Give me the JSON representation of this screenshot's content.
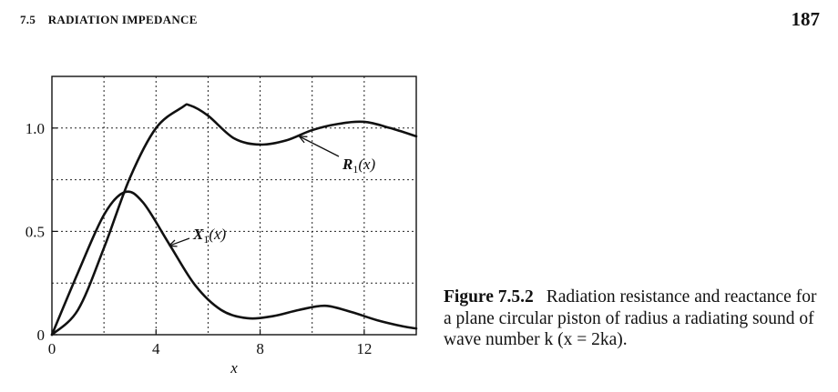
{
  "header": {
    "section_number": "7.5",
    "section_title": "RADIATION IMPEDANCE",
    "page_number": "187"
  },
  "caption": {
    "label": "Figure 7.5.2",
    "text": "Radiation resistance and reactance for a plane circular piston of radius a radiating sound of wave number k (x = 2ka)."
  },
  "chart_data": {
    "type": "line",
    "xlabel": "x",
    "ylabel": "",
    "xlim": [
      0,
      14
    ],
    "ylim": [
      0,
      1.25
    ],
    "x_ticks": [
      0,
      4,
      8,
      12
    ],
    "x_tick_labels": [
      "0",
      "4",
      "8",
      "12"
    ],
    "y_ticks": [
      0,
      0.5,
      1.0
    ],
    "y_tick_labels": [
      "0",
      "0.5",
      "1.0"
    ],
    "grid": true,
    "grid_x": [
      0,
      2,
      4,
      6,
      8,
      10,
      12,
      14
    ],
    "grid_y": [
      0.25,
      0.5,
      0.75,
      1.0
    ],
    "series": [
      {
        "name": "R1(x)",
        "label_base": "R",
        "label_sub": "1",
        "label_arg": "(x)",
        "x": [
          0,
          1,
          2,
          3,
          4,
          5,
          5.3,
          6,
          7,
          8,
          9,
          10,
          11,
          12,
          13,
          14
        ],
        "y": [
          0,
          0.12,
          0.42,
          0.76,
          1.0,
          1.1,
          1.11,
          1.06,
          0.95,
          0.92,
          0.94,
          0.99,
          1.02,
          1.03,
          1.0,
          0.96
        ]
      },
      {
        "name": "X1(x)",
        "label_base": "X",
        "label_sub": "1",
        "label_arg": "(x)",
        "x": [
          0,
          1,
          2,
          2.8,
          3.5,
          4.5,
          5.5,
          6.5,
          7.5,
          8.5,
          9.5,
          10.5,
          11.5,
          12.5,
          13.5,
          14
        ],
        "y": [
          0,
          0.3,
          0.58,
          0.69,
          0.64,
          0.44,
          0.24,
          0.12,
          0.08,
          0.09,
          0.12,
          0.14,
          0.11,
          0.07,
          0.04,
          0.03
        ]
      }
    ],
    "annotations": [
      {
        "series": "R1(x)",
        "text": "R1(x)",
        "at_x": 9.5,
        "at_y": 0.96
      },
      {
        "series": "X1(x)",
        "text": "X1(x)",
        "at_x": 4.5,
        "at_y": 0.43
      }
    ]
  }
}
